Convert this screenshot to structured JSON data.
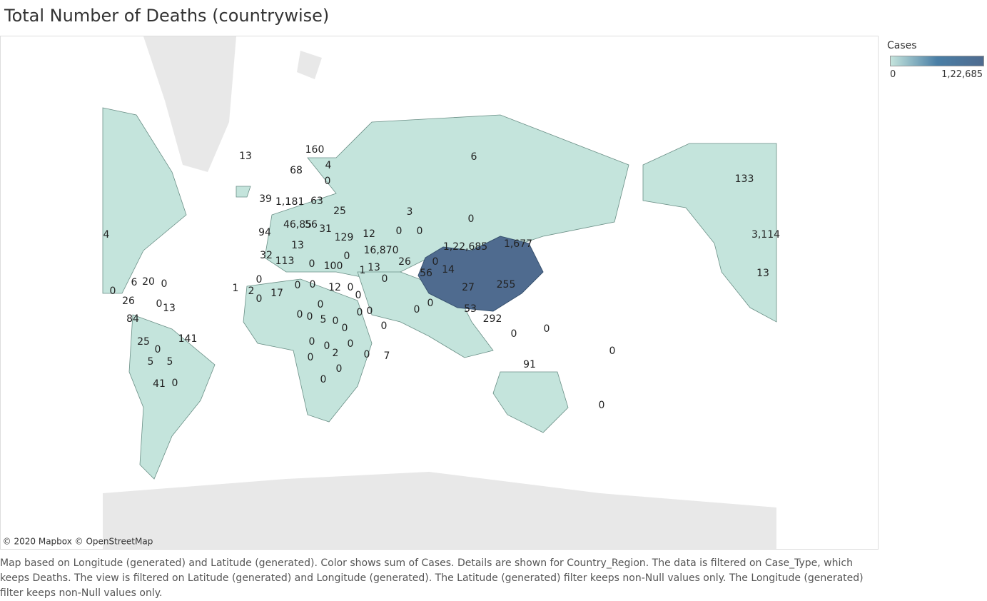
{
  "title": "Total Number of Deaths (countrywise)",
  "legend": {
    "title": "Cases",
    "min_label": "0",
    "max_label": "1,22,685"
  },
  "map": {
    "attribution": "© 2020 Mapbox © OpenStreetMap",
    "labels": [
      "13",
      "160",
      "4",
      "68",
      "0",
      "6",
      "133",
      "39",
      "1,1",
      "181",
      "63",
      "25",
      "3",
      "0",
      "94",
      "46,85",
      "56",
      "31",
      "129",
      "12",
      "0",
      "0",
      "1,22,685",
      "1,677",
      "13",
      "32",
      "113",
      "0",
      "100",
      "16,870",
      "0",
      "26",
      "1",
      "13",
      "0",
      "14",
      "56",
      "0",
      "4",
      "6",
      "20",
      "0",
      "0",
      "1",
      "2",
      "0",
      "0",
      "17",
      "0",
      "0",
      "12",
      "0",
      "0",
      "27",
      "255",
      "26",
      "0",
      "13",
      "0",
      "0",
      "0",
      "5",
      "0",
      "0",
      "0",
      "0",
      "0",
      "53",
      "292",
      "84",
      "141",
      "0",
      "0",
      "25",
      "0",
      "0",
      "0",
      "0",
      "2",
      "0",
      "0",
      "0",
      "5",
      "5",
      "0",
      "0",
      "7",
      "0",
      "91",
      "41",
      "0",
      "0",
      "0",
      "3,114",
      "13"
    ]
  },
  "footnote": "Map based on Longitude (generated) and Latitude (generated).  Color shows sum of Cases.  Details are shown for Country_Region. The data is filtered on Case_Type, which keeps Deaths. The view is filtered on Latitude (generated) and Longitude (generated). The Latitude (generated) filter keeps non-Null values only. The Longitude (generated) filter keeps non-Null values only."
}
